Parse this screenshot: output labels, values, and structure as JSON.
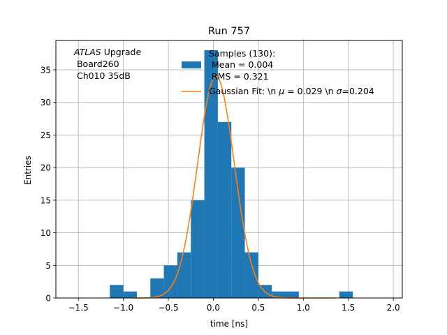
{
  "chart_data": {
    "type": "bar",
    "title": "Run 757",
    "xlabel": "time [ns]",
    "ylabel": "Entries",
    "xlim": [
      -1.75,
      2.1
    ],
    "ylim": [
      0,
      39.5
    ],
    "grid": true,
    "xticks": [
      -1.5,
      -1.0,
      -0.5,
      0.0,
      0.5,
      1.0,
      1.5,
      2.0
    ],
    "xtick_labels": [
      "−1.5",
      "−1.0",
      "−0.5",
      "0.0",
      "0.5",
      "1.0",
      "1.5",
      "2.0"
    ],
    "yticks": [
      0,
      5,
      10,
      15,
      20,
      25,
      30,
      35
    ],
    "yticks_labels": [
      "0",
      "5",
      "10",
      "15",
      "20",
      "25",
      "30",
      "35"
    ],
    "annotation": {
      "line1_italic": "ATLAS",
      "line1_rest": " Upgrade",
      "line2": " Board260",
      "line3": " Ch010 35dB"
    },
    "histogram": {
      "name": "Samples (130):",
      "legend_lines": [
        "Samples (130):",
        " Mean = 0.004",
        " RMS = 0.321"
      ],
      "color": "#1f77b4",
      "bin_edges": [
        -1.15,
        -1.0,
        -0.85,
        -0.7,
        -0.55,
        -0.4,
        -0.25,
        -0.1,
        0.05,
        0.2,
        0.35,
        0.5,
        0.65,
        0.8,
        0.95,
        1.1,
        1.25,
        1.4,
        1.55
      ],
      "counts": [
        2,
        1,
        0,
        3,
        5,
        7,
        15,
        38,
        27,
        20,
        7,
        2,
        1,
        1,
        0,
        0,
        0,
        1
      ]
    },
    "fit": {
      "name": "Gaussian Fit: \\n μ = 0.029 \\n σ=0.204",
      "legend_label_prefix": "Gaussian Fit: \\n ",
      "legend_mu": "μ",
      "legend_mid": " = 0.029 \\n ",
      "legend_sigma": "σ",
      "legend_suffix": "=0.204",
      "color": "#ff7f0e",
      "mu": 0.029,
      "sigma": 0.204,
      "amplitude": 34.0,
      "x_range": [
        -0.9,
        1.35
      ]
    }
  }
}
